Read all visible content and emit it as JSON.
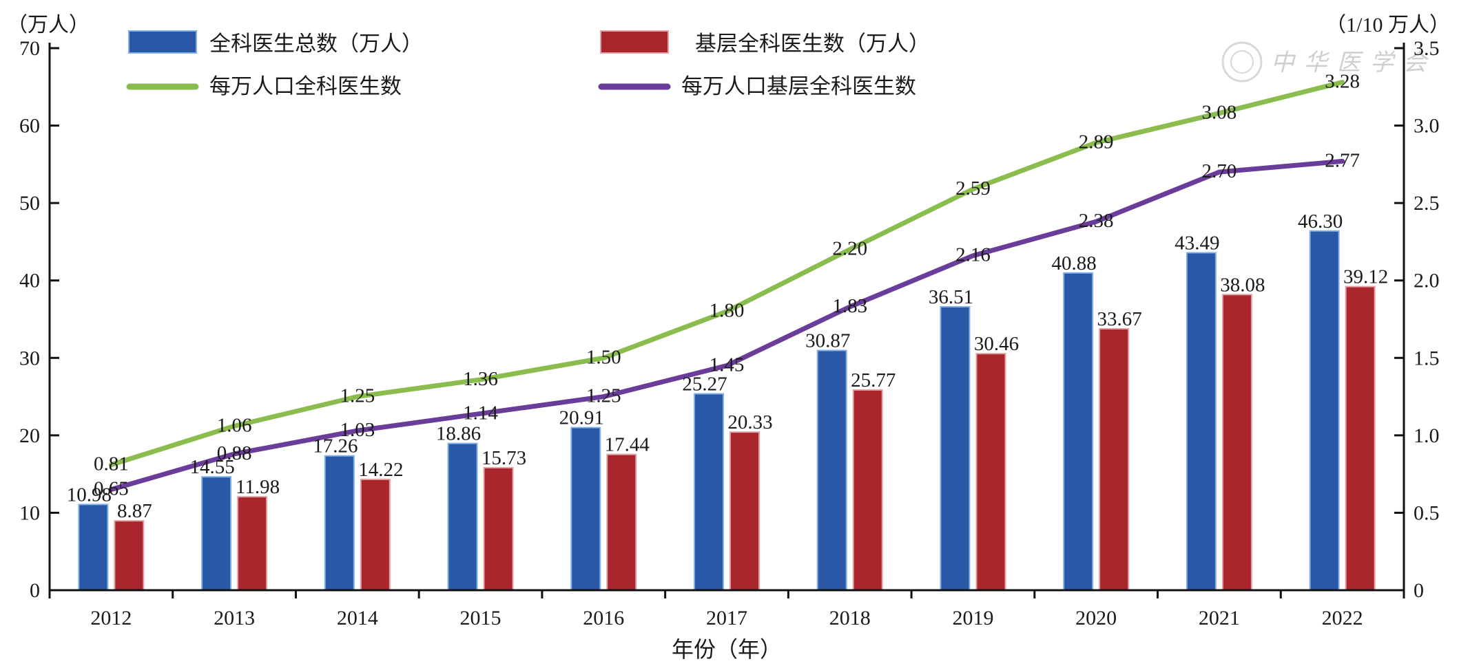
{
  "chart_data": {
    "type": "bar",
    "categories": [
      "2012",
      "2013",
      "2014",
      "2015",
      "2016",
      "2017",
      "2018",
      "2019",
      "2020",
      "2021",
      "2022"
    ],
    "xlabel": "年份（年）",
    "y_left_unit": "（万人）",
    "y_right_unit": "（1/10 万人）",
    "ylim_left": [
      0,
      70
    ],
    "ylim_right": [
      0,
      3.5
    ],
    "yticks_left": [
      "0",
      "10",
      "20",
      "30",
      "40",
      "50",
      "60",
      "70"
    ],
    "yticks_right": [
      "0",
      "0.5",
      "1.0",
      "1.5",
      "2.0",
      "2.5",
      "3.0",
      "3.5"
    ],
    "grid": false,
    "legend_position": "top",
    "watermark": "中华医学会",
    "series": [
      {
        "name": "全科医生总数（万人）",
        "type": "bar",
        "axis": "left",
        "color": "#2a58a6",
        "values": [
          10.98,
          14.55,
          17.26,
          18.86,
          20.91,
          25.27,
          30.87,
          36.51,
          40.88,
          43.49,
          46.3
        ],
        "labels": [
          "10.98",
          "14.55",
          "17.26",
          "18.86",
          "20.91",
          "25.27",
          "30.87",
          "36.51",
          "40.88",
          "43.49",
          "46.30"
        ]
      },
      {
        "name": "基层全科医生数（万人）",
        "type": "bar",
        "axis": "left",
        "color": "#a8262c",
        "values": [
          8.87,
          11.98,
          14.22,
          15.73,
          17.44,
          20.33,
          25.77,
          30.46,
          33.67,
          38.08,
          39.12
        ],
        "labels": [
          "8.87",
          "11.98",
          "14.22",
          "15.73",
          "17.44",
          "20.33",
          "25.77",
          "30.46",
          "33.67",
          "38.08",
          "39.12"
        ]
      },
      {
        "name": "每万人口全科医生数",
        "type": "line",
        "axis": "right",
        "color": "#8bbd4e",
        "values": [
          0.81,
          1.06,
          1.25,
          1.36,
          1.5,
          1.8,
          2.2,
          2.59,
          2.89,
          3.08,
          3.28
        ],
        "labels": [
          "0.81",
          "1.06",
          "1.25",
          "1.36",
          "1.50",
          "1.80",
          "2.20",
          "2.59",
          "2.89",
          "3.08",
          "3.28"
        ]
      },
      {
        "name": "每万人口基层全科医生数",
        "type": "line",
        "axis": "right",
        "color": "#6a3d9a",
        "values": [
          0.65,
          0.88,
          1.03,
          1.14,
          1.25,
          1.45,
          1.83,
          2.16,
          2.38,
          2.7,
          2.77
        ],
        "labels": [
          "0.65",
          "0.88",
          "1.03",
          "1.14",
          "1.25",
          "1.45",
          "1.83",
          "2.16",
          "2.38",
          "2.70",
          "2.77"
        ]
      }
    ]
  }
}
